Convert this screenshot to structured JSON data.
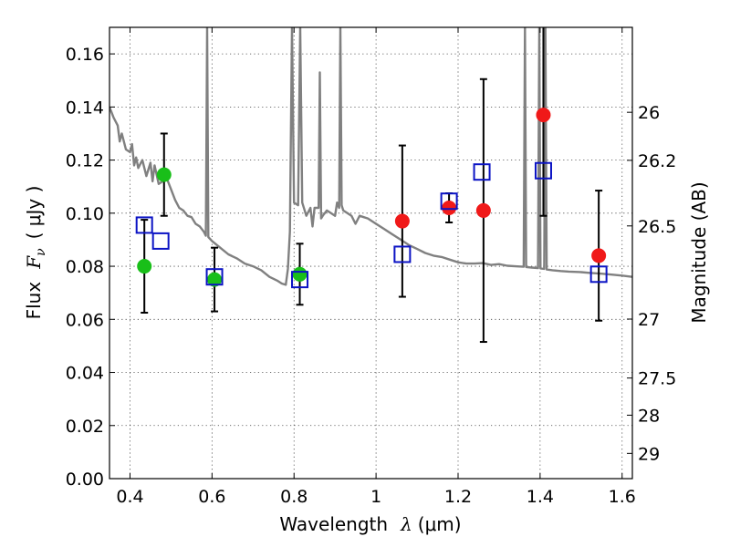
{
  "chart_data": {
    "type": "scatter",
    "title": "",
    "xlabel": "Wavelength  λ (μm)",
    "xlabel_text": "Wavelength",
    "xlabel_symbol": "λ",
    "xlabel_unit": "(μm)",
    "ylabel_text": "Flux",
    "ylabel_symbol": "F",
    "ylabel_subscript": "ν",
    "ylabel_unit": "( μJy )",
    "y2label": "Magnitude (AB)",
    "xlim": [
      0.35,
      1.625
    ],
    "ylim": [
      0.0,
      0.17
    ],
    "xticks": [
      0.4,
      0.6,
      0.8,
      1.0,
      1.2,
      1.4,
      1.6
    ],
    "xtick_labels": [
      "0.4",
      "0.6",
      "0.8",
      "1",
      "1.2",
      "1.4",
      "1.6"
    ],
    "yticks": [
      0.0,
      0.02,
      0.04,
      0.06,
      0.08,
      0.1,
      0.12,
      0.14,
      0.16
    ],
    "ytick_labels": [
      "0.00",
      "0.02",
      "0.04",
      "0.06",
      "0.08",
      "0.10",
      "0.12",
      "0.14",
      "0.16"
    ],
    "y2ticks": [
      {
        "flux": 0.138,
        "label": "26"
      },
      {
        "flux": 0.1199,
        "label": "26.2"
      },
      {
        "flux": 0.0952,
        "label": "26.5"
      },
      {
        "flux": 0.0601,
        "label": "27"
      },
      {
        "flux": 0.0379,
        "label": "27.5"
      },
      {
        "flux": 0.0239,
        "label": "28"
      },
      {
        "flux": 0.0095,
        "label": "29"
      }
    ],
    "grid": true,
    "colors": {
      "model": "#808080",
      "green": "#19bf19",
      "red": "#f01919",
      "box": "#0b13c4",
      "errorbar": "#000000"
    },
    "series": [
      {
        "name": "observed-green",
        "marker": "circle",
        "points": [
          {
            "x": 0.435,
            "y": 0.08,
            "err": 0.0175
          },
          {
            "x": 0.483,
            "y": 0.1145,
            "err": 0.0155
          },
          {
            "x": 0.606,
            "y": 0.075,
            "err": 0.012
          },
          {
            "x": 0.814,
            "y": 0.077,
            "err": 0.0115
          }
        ]
      },
      {
        "name": "observed-red",
        "marker": "circle",
        "points": [
          {
            "x": 1.064,
            "y": 0.097,
            "err": 0.0285
          },
          {
            "x": 1.178,
            "y": 0.102,
            "err": 0.0055
          },
          {
            "x": 1.262,
            "y": 0.101,
            "err": 0.0495
          },
          {
            "x": 1.408,
            "y": 0.137,
            "err": 0.038
          },
          {
            "x": 1.543,
            "y": 0.084,
            "err": 0.0245
          }
        ]
      },
      {
        "name": "model-photometry",
        "marker": "square",
        "points": [
          {
            "x": 0.435,
            "y": 0.0955
          },
          {
            "x": 0.475,
            "y": 0.0895
          },
          {
            "x": 0.606,
            "y": 0.076
          },
          {
            "x": 0.814,
            "y": 0.075
          },
          {
            "x": 1.064,
            "y": 0.0845
          },
          {
            "x": 1.178,
            "y": 0.1045
          },
          {
            "x": 1.258,
            "y": 0.1155
          },
          {
            "x": 1.408,
            "y": 0.116
          },
          {
            "x": 1.543,
            "y": 0.077
          }
        ]
      }
    ],
    "model_spectrum": {
      "name": "model-sed",
      "points": [
        [
          0.35,
          0.14
        ],
        [
          0.36,
          0.136
        ],
        [
          0.37,
          0.133
        ],
        [
          0.375,
          0.127
        ],
        [
          0.38,
          0.13
        ],
        [
          0.39,
          0.124
        ],
        [
          0.4,
          0.123
        ],
        [
          0.405,
          0.126
        ],
        [
          0.41,
          0.118
        ],
        [
          0.415,
          0.121
        ],
        [
          0.42,
          0.117
        ],
        [
          0.43,
          0.12
        ],
        [
          0.44,
          0.114
        ],
        [
          0.45,
          0.119
        ],
        [
          0.455,
          0.112
        ],
        [
          0.46,
          0.118
        ],
        [
          0.47,
          0.111
        ],
        [
          0.48,
          0.112
        ],
        [
          0.49,
          0.113
        ],
        [
          0.5,
          0.109
        ],
        [
          0.51,
          0.105
        ],
        [
          0.52,
          0.102
        ],
        [
          0.53,
          0.101
        ],
        [
          0.54,
          0.099
        ],
        [
          0.55,
          0.0985
        ],
        [
          0.56,
          0.096
        ],
        [
          0.57,
          0.095
        ],
        [
          0.58,
          0.093
        ],
        [
          0.585,
          0.0915
        ],
        [
          0.588,
          0.17
        ],
        [
          0.591,
          0.091
        ],
        [
          0.6,
          0.0895
        ],
        [
          0.62,
          0.087
        ],
        [
          0.64,
          0.0845
        ],
        [
          0.66,
          0.083
        ],
        [
          0.68,
          0.081
        ],
        [
          0.7,
          0.08
        ],
        [
          0.72,
          0.0785
        ],
        [
          0.74,
          0.076
        ],
        [
          0.76,
          0.0745
        ],
        [
          0.77,
          0.0735
        ],
        [
          0.78,
          0.073
        ],
        [
          0.785,
          0.079
        ],
        [
          0.79,
          0.093
        ],
        [
          0.795,
          0.17
        ],
        [
          0.8,
          0.104
        ],
        [
          0.81,
          0.103
        ],
        [
          0.815,
          0.17
        ],
        [
          0.82,
          0.104
        ],
        [
          0.83,
          0.099
        ],
        [
          0.84,
          0.102
        ],
        [
          0.845,
          0.095
        ],
        [
          0.85,
          0.102
        ],
        [
          0.86,
          0.102
        ],
        [
          0.863,
          0.153
        ],
        [
          0.866,
          0.098
        ],
        [
          0.87,
          0.099
        ],
        [
          0.88,
          0.101
        ],
        [
          0.89,
          0.1
        ],
        [
          0.9,
          0.099
        ],
        [
          0.905,
          0.104
        ],
        [
          0.91,
          0.102
        ],
        [
          0.913,
          0.17
        ],
        [
          0.916,
          0.103
        ],
        [
          0.92,
          0.101
        ],
        [
          0.93,
          0.1
        ],
        [
          0.94,
          0.099
        ],
        [
          0.95,
          0.096
        ],
        [
          0.96,
          0.099
        ],
        [
          0.97,
          0.0985
        ],
        [
          0.98,
          0.098
        ],
        [
          1.0,
          0.096
        ],
        [
          1.02,
          0.094
        ],
        [
          1.04,
          0.092
        ],
        [
          1.06,
          0.09
        ],
        [
          1.08,
          0.088
        ],
        [
          1.1,
          0.0865
        ],
        [
          1.12,
          0.085
        ],
        [
          1.14,
          0.084
        ],
        [
          1.16,
          0.0835
        ],
        [
          1.18,
          0.0825
        ],
        [
          1.2,
          0.0815
        ],
        [
          1.22,
          0.081
        ],
        [
          1.24,
          0.081
        ],
        [
          1.26,
          0.0812
        ],
        [
          1.28,
          0.0805
        ],
        [
          1.3,
          0.0808
        ],
        [
          1.32,
          0.0802
        ],
        [
          1.34,
          0.08
        ],
        [
          1.36,
          0.0798
        ],
        [
          1.363,
          0.17
        ],
        [
          1.366,
          0.0797
        ],
        [
          1.38,
          0.0795
        ],
        [
          1.395,
          0.0793
        ],
        [
          1.398,
          0.17
        ],
        [
          1.401,
          0.0792
        ],
        [
          1.41,
          0.079
        ],
        [
          1.413,
          0.17
        ],
        [
          1.416,
          0.0788
        ],
        [
          1.43,
          0.0785
        ],
        [
          1.45,
          0.0782
        ],
        [
          1.47,
          0.078
        ],
        [
          1.5,
          0.0778
        ],
        [
          1.52,
          0.0775
        ],
        [
          1.55,
          0.0772
        ],
        [
          1.58,
          0.0768
        ],
        [
          1.6,
          0.0765
        ],
        [
          1.625,
          0.076
        ]
      ]
    }
  }
}
